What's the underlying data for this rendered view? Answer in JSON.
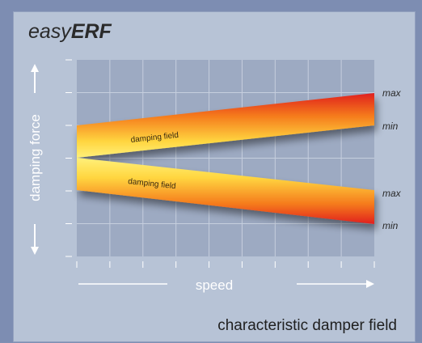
{
  "title": {
    "prefix": "easy",
    "emphasis": "ERF"
  },
  "y_axis_label": "damping force",
  "x_axis_label": "speed",
  "caption": "characteristic damper field",
  "bands": [
    {
      "label": "damping field",
      "upper_label": "max",
      "lower_label": "min"
    },
    {
      "label": "damping field",
      "upper_label": "max",
      "lower_label": "min"
    }
  ],
  "colors": {
    "background": "#7d8db2",
    "panel": "#b7c3d6",
    "plot": "#9daac2",
    "band_outer": "#e02020",
    "band_inner": "#ffe45a",
    "arrow": "#ffffff"
  }
}
